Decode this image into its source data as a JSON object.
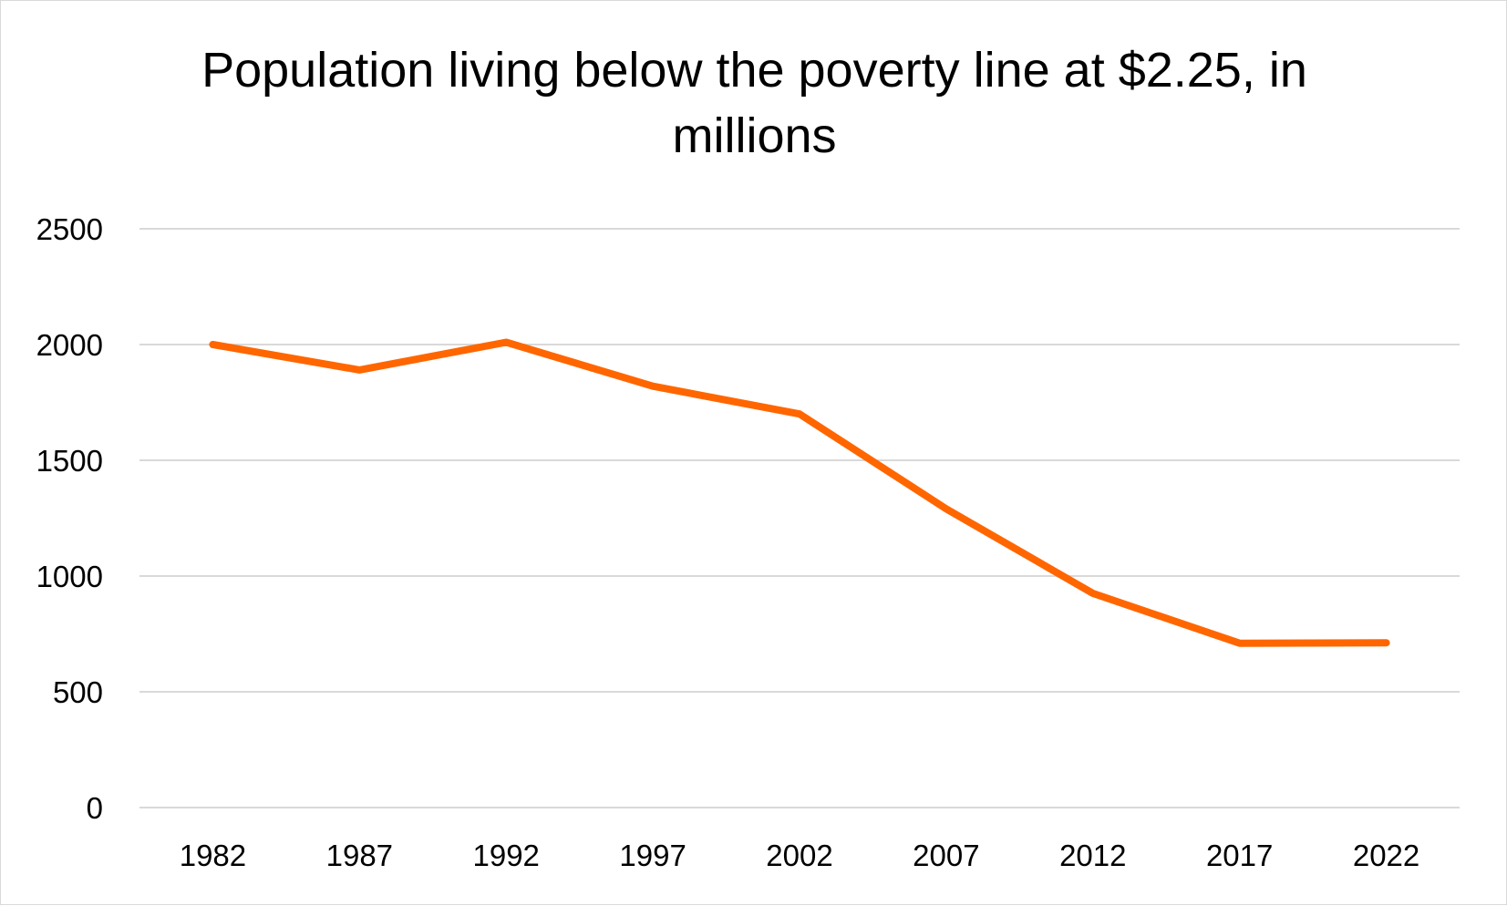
{
  "chart_data": {
    "type": "line",
    "title": "Population living below the poverty line at $2.25, in millions",
    "xlabel": "",
    "ylabel": "",
    "categories": [
      "1982",
      "1987",
      "1992",
      "1997",
      "2002",
      "2007",
      "2012",
      "2017",
      "2022"
    ],
    "series": [
      {
        "values": [
          2000,
          1890,
          2010,
          1820,
          1700,
          1290,
          925,
          710,
          712
        ],
        "color": "#ff6600"
      }
    ],
    "ylim": [
      0,
      2500
    ],
    "yticks": [
      0,
      500,
      1000,
      1500,
      2000,
      2500
    ],
    "grid": true,
    "gridline_color": "#d9d9d9",
    "legend": "none"
  }
}
